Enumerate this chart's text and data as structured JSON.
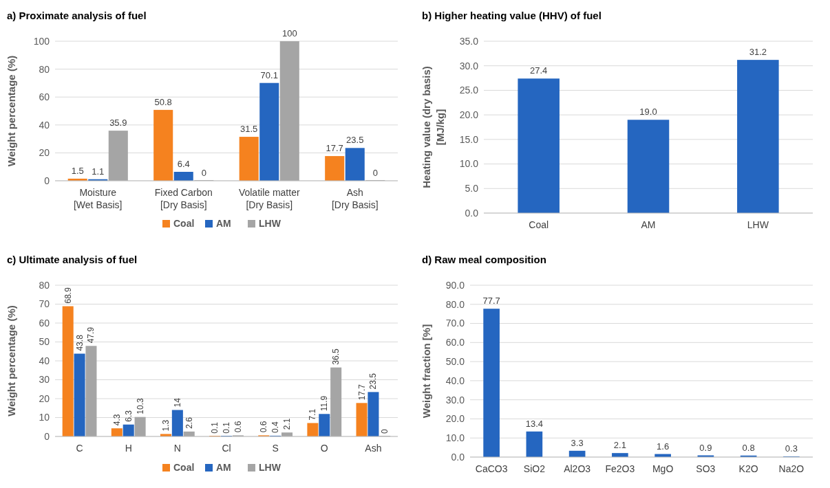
{
  "chart_data": [
    {
      "type": "bar",
      "title": "a) Proximate analysis of fuel",
      "ylabel": "Weight percentage (%)",
      "categories": [
        "Moisture\n[Wet Basis]",
        "Fixed Carbon\n[Dry Basis]",
        "Volatile matter\n[Dry Basis]",
        "Ash\n[Dry Basis]"
      ],
      "series": [
        {
          "name": "Coal",
          "color": "#f5821f",
          "values": [
            1.5,
            50.8,
            31.5,
            17.7
          ]
        },
        {
          "name": "AM",
          "color": "#2566c0",
          "values": [
            1.1,
            6.4,
            70.1,
            23.5
          ]
        },
        {
          "name": "LHW",
          "color": "#a5a5a5",
          "values": [
            35.9,
            0,
            100,
            0
          ]
        }
      ],
      "ylim": [
        0,
        100
      ],
      "yticks": [
        0,
        20,
        40,
        60,
        80,
        100
      ],
      "grid": "y",
      "legend": "bottom",
      "data_labels": true
    },
    {
      "type": "bar",
      "title": "b) Higher heating value (HHV) of fuel",
      "ylabel": "Heating value (dry basis)\n[MJ/kg]",
      "categories": [
        "Coal",
        "AM",
        "LHW"
      ],
      "values": [
        27.4,
        19.0,
        31.2
      ],
      "value_labels": [
        "27.4",
        "19.0",
        "31.2"
      ],
      "color": "#2566c0",
      "ylim": [
        0,
        35
      ],
      "yticks": [
        {
          "value": 0,
          "label": "0.0"
        },
        {
          "value": 5,
          "label": "5.0"
        },
        {
          "value": 10,
          "label": "10.0"
        },
        {
          "value": 15,
          "label": "15.0"
        },
        {
          "value": 20,
          "label": "20.0"
        },
        {
          "value": 25,
          "label": "25.0"
        },
        {
          "value": 30,
          "label": "30.0"
        },
        {
          "value": 35,
          "label": "35.0"
        }
      ],
      "grid": "y"
    },
    {
      "type": "bar",
      "title": "c) Ultimate analysis of fuel",
      "ylabel": "Weight percentage (%)",
      "categories": [
        "C",
        "H",
        "N",
        "Cl",
        "S",
        "O",
        "Ash"
      ],
      "series": [
        {
          "name": "Coal",
          "color": "#f5821f",
          "values": [
            68.9,
            4.3,
            1.3,
            0.1,
            0.6,
            7.1,
            17.7
          ]
        },
        {
          "name": "AM",
          "color": "#2566c0",
          "values": [
            43.8,
            6.3,
            14,
            0.1,
            0.4,
            11.9,
            23.5
          ]
        },
        {
          "name": "LHW",
          "color": "#a5a5a5",
          "values": [
            47.9,
            10.3,
            2.6,
            0.6,
            2.1,
            36.5,
            0
          ]
        }
      ],
      "ylim": [
        0,
        80
      ],
      "yticks": [
        0,
        10,
        20,
        30,
        40,
        50,
        60,
        70,
        80
      ],
      "grid": "y",
      "legend": "bottom",
      "data_labels": true
    },
    {
      "type": "bar",
      "title": "d) Raw meal composition",
      "ylabel": "Weight fraction [%]",
      "categories": [
        "CaCO3",
        "SiO2",
        "Al2O3",
        "Fe2O3",
        "MgO",
        "SO3",
        "K2O",
        "Na2O"
      ],
      "values": [
        77.7,
        13.4,
        3.3,
        2.1,
        1.6,
        0.9,
        0.8,
        0.3
      ],
      "color": "#2566c0",
      "ylim": [
        0,
        90
      ],
      "yticks": [
        {
          "value": 0,
          "label": "0.0"
        },
        {
          "value": 10,
          "label": "10.0"
        },
        {
          "value": 20,
          "label": "20.0"
        },
        {
          "value": 30,
          "label": "30.0"
        },
        {
          "value": 40,
          "label": "40.0"
        },
        {
          "value": 50,
          "label": "50.0"
        },
        {
          "value": 60,
          "label": "60.0"
        },
        {
          "value": 70,
          "label": "70.0"
        },
        {
          "value": 80,
          "label": "80.0"
        },
        {
          "value": 90,
          "label": "90.0"
        }
      ],
      "grid": "y",
      "data_labels": true
    }
  ]
}
